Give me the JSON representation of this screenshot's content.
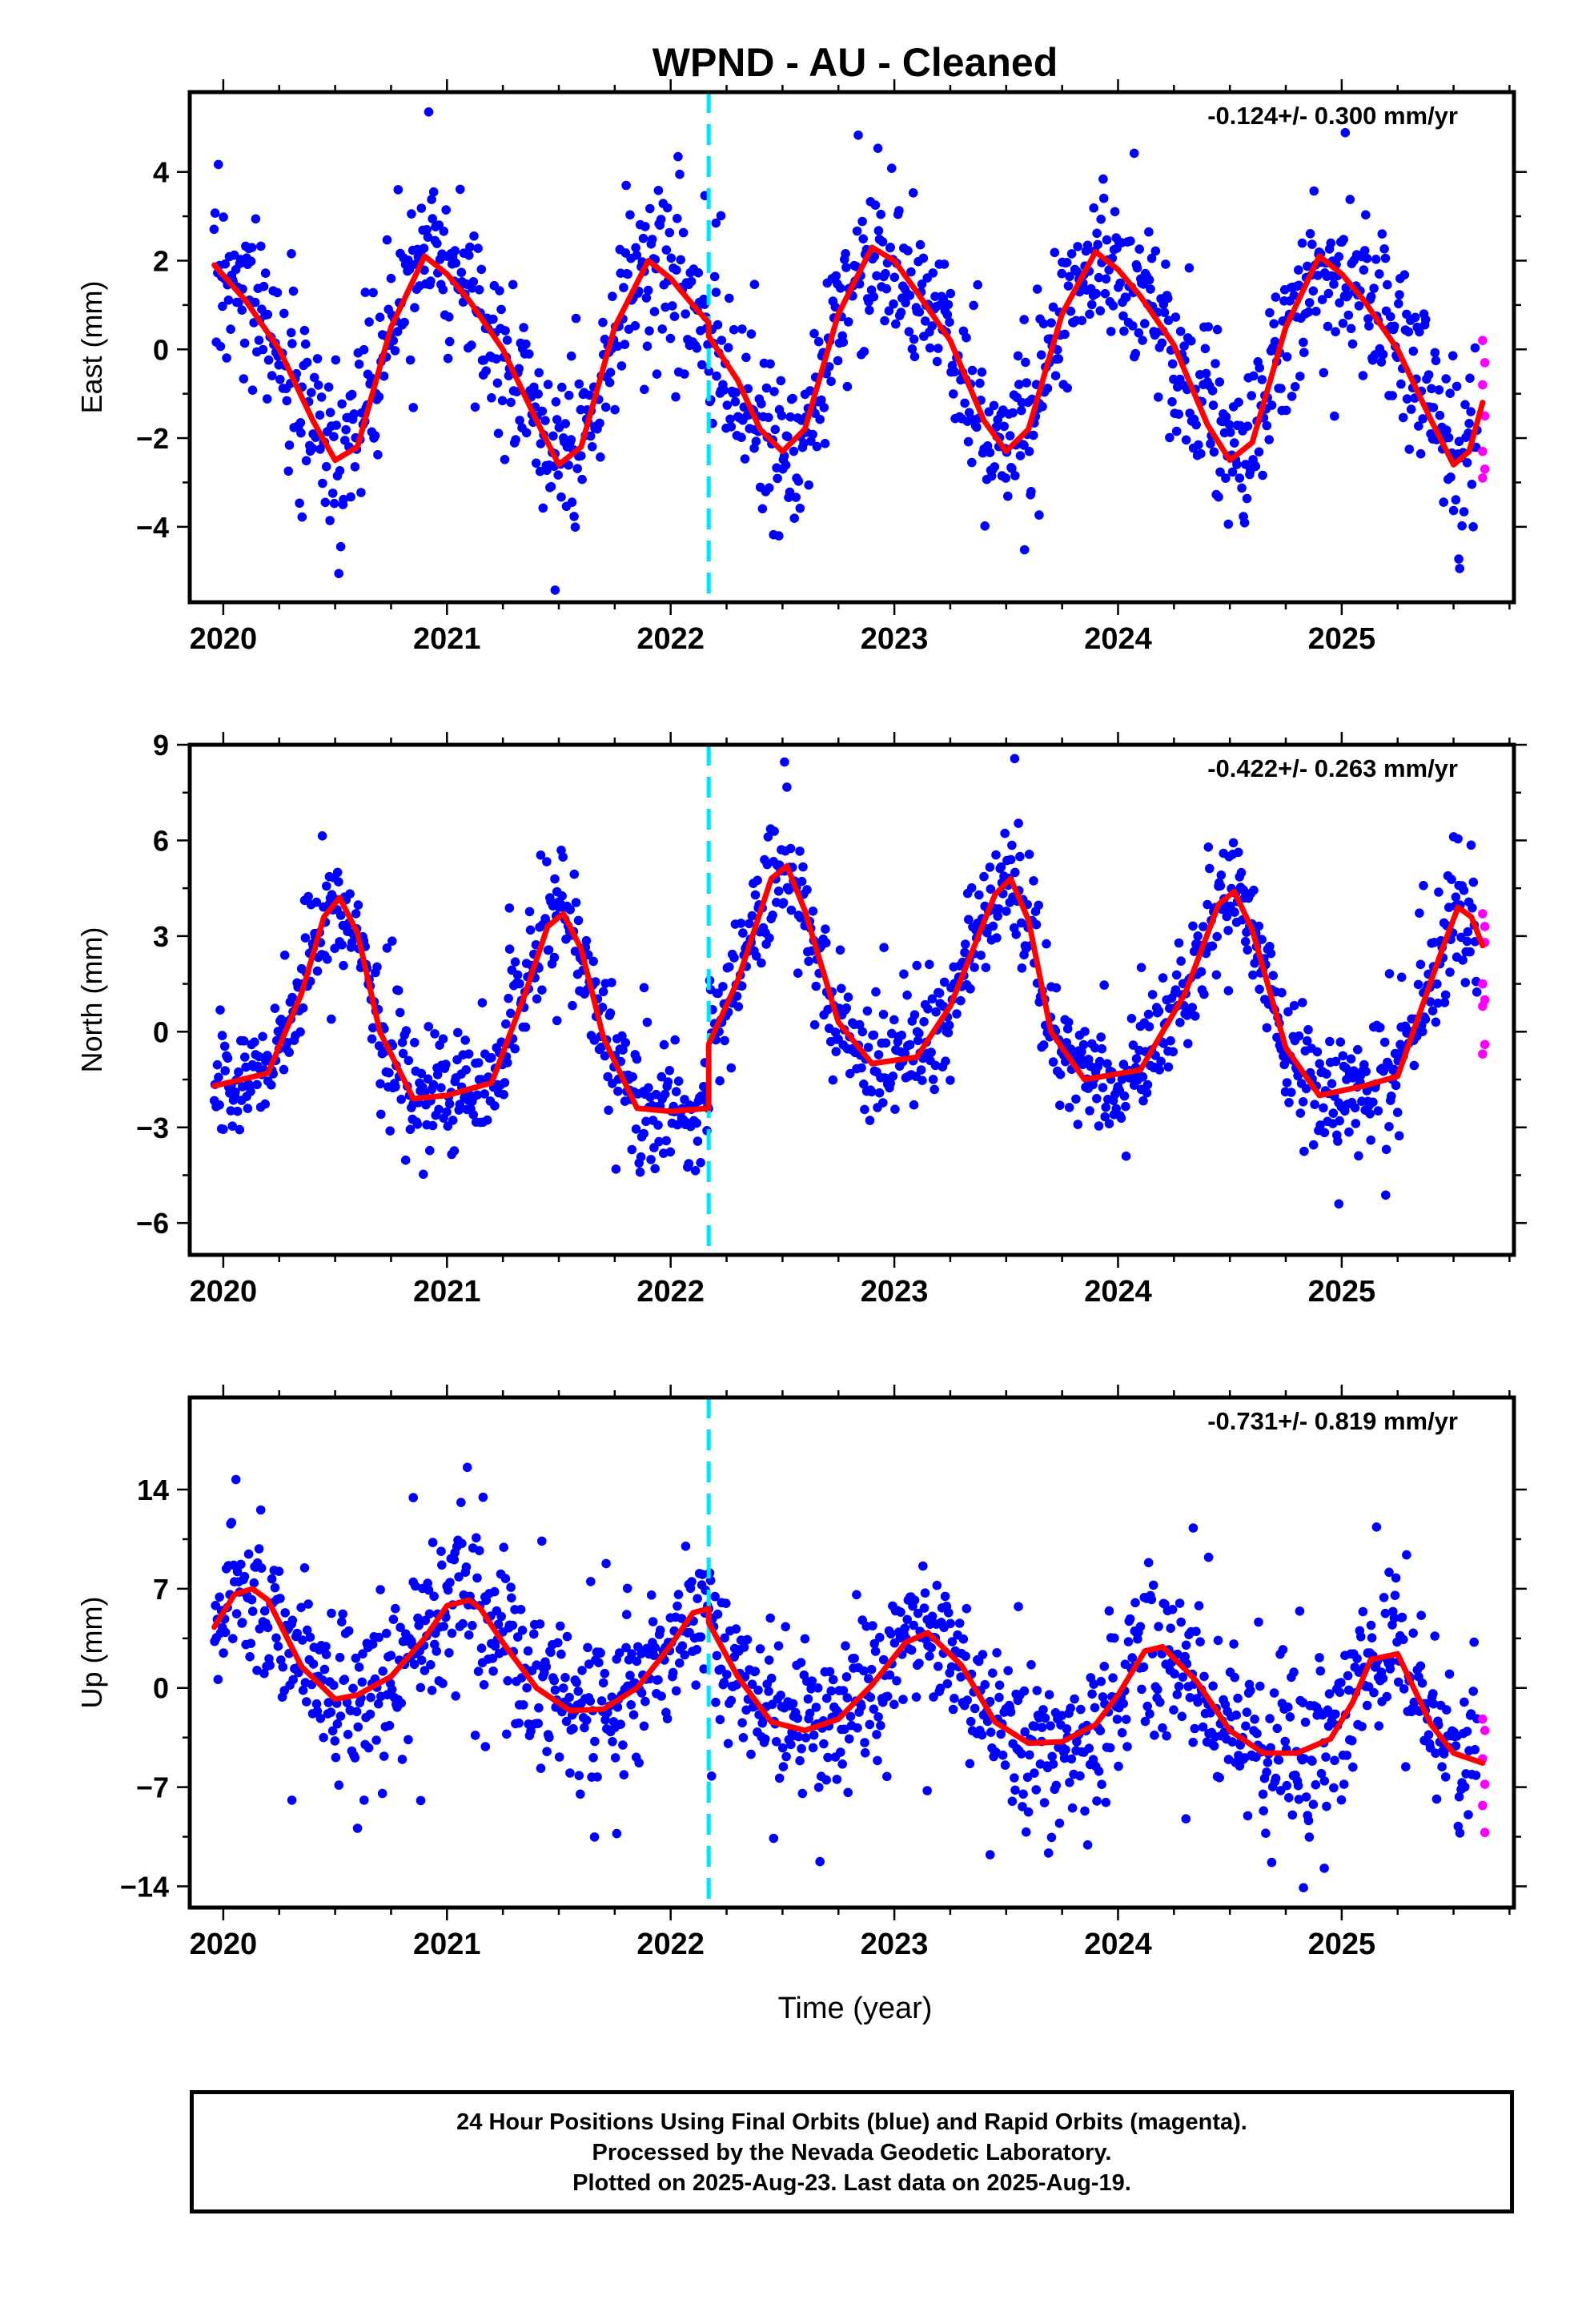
{
  "title": "WPND  - AU - Cleaned",
  "xlabel": "Time (year)",
  "x_ticks": [
    "2020",
    "2021",
    "2022",
    "2023",
    "2024",
    "2025"
  ],
  "colors": {
    "final_orbits": "#0000ff",
    "rapid_orbits": "#ff00ff",
    "model": "#ff0000",
    "equipment_change": "#00e5ff"
  },
  "footer": {
    "line1": "24 Hour Positions Using Final Orbits (blue) and Rapid Orbits (magenta).",
    "line2": "Processed by the Nevada Geodetic Laboratory.",
    "line3": "Plotted on 2025-Aug-23. Last data on 2025-Aug-19."
  },
  "chart_data": [
    {
      "type": "scatter",
      "component": "East",
      "ylabel": "East (mm)",
      "rate_label": "-0.124+/- 0.300 mm/yr",
      "xlim": [
        2019.85,
        2025.77
      ],
      "ylim": [
        -5.7,
        5.8
      ],
      "y_ticks": [
        4,
        2,
        0,
        -2,
        -4
      ],
      "y_tick_labels": [
        "4",
        "2",
        "0",
        "−2",
        "−4"
      ],
      "equipment_change_x": 2022.17,
      "model": {
        "x": [
          2019.96,
          2020.1,
          2020.25,
          2020.4,
          2020.5,
          2020.6,
          2020.75,
          2020.9,
          2021.0,
          2021.1,
          2021.25,
          2021.4,
          2021.5,
          2021.6,
          2021.75,
          2021.9,
          2022.0,
          2022.1,
          2022.17,
          2022.17,
          2022.3,
          2022.4,
          2022.5,
          2022.6,
          2022.75,
          2022.9,
          2023.0,
          2023.1,
          2023.25,
          2023.4,
          2023.5,
          2023.6,
          2023.75,
          2023.9,
          2024.0,
          2024.1,
          2024.25,
          2024.4,
          2024.5,
          2024.6,
          2024.75,
          2024.9,
          2025.0,
          2025.1,
          2025.25,
          2025.4,
          2025.5,
          2025.57,
          2025.63
        ],
        "y": [
          1.9,
          1.1,
          0.0,
          -1.6,
          -2.5,
          -2.2,
          0.5,
          2.1,
          1.7,
          1.1,
          0.0,
          -1.6,
          -2.6,
          -2.2,
          0.5,
          2.0,
          1.6,
          1.0,
          0.6,
          0.3,
          -0.7,
          -1.8,
          -2.3,
          -1.8,
          0.8,
          2.3,
          2.0,
          1.3,
          0.2,
          -1.6,
          -2.3,
          -1.8,
          0.8,
          2.2,
          1.8,
          1.2,
          0.1,
          -1.7,
          -2.5,
          -2.1,
          0.5,
          2.1,
          1.7,
          1.1,
          0.0,
          -1.6,
          -2.6,
          -2.3,
          -1.2
        ]
      },
      "points_generation": {
        "count": 1250,
        "scatter_sd": 0.95,
        "outliers": 18,
        "outlier_range": 1.8
      },
      "rapid_points": {
        "x": [
          2025.63,
          2025.64,
          2025.63,
          2025.64,
          2025.63,
          2025.64,
          2025.63
        ],
        "y": [
          0.2,
          -0.3,
          -0.8,
          -1.5,
          -2.3,
          -2.7,
          -2.9
        ]
      }
    },
    {
      "type": "scatter",
      "component": "North",
      "ylabel": "North (mm)",
      "rate_label": "-0.422+/- 0.263 mm/yr",
      "xlim": [
        2019.85,
        2025.77
      ],
      "ylim": [
        -7,
        9
      ],
      "y_ticks": [
        9,
        6,
        3,
        0,
        -3,
        -6
      ],
      "y_tick_labels": [
        "9",
        "6",
        "3",
        "0",
        "−3",
        "−6"
      ],
      "equipment_change_x": 2022.17,
      "model": {
        "x": [
          2019.96,
          2020.2,
          2020.35,
          2020.45,
          2020.52,
          2020.6,
          2020.7,
          2020.85,
          2021.0,
          2021.2,
          2021.35,
          2021.45,
          2021.52,
          2021.6,
          2021.7,
          2021.85,
          2022.0,
          2022.17,
          2022.17,
          2022.3,
          2022.45,
          2022.52,
          2022.6,
          2022.75,
          2022.9,
          2023.1,
          2023.25,
          2023.45,
          2023.52,
          2023.6,
          2023.7,
          2023.85,
          2024.1,
          2024.3,
          2024.45,
          2024.52,
          2024.6,
          2024.75,
          2024.9,
          2025.1,
          2025.25,
          2025.45,
          2025.52,
          2025.58,
          2025.63
        ],
        "y": [
          -1.7,
          -1.3,
          1.2,
          3.6,
          4.2,
          3.1,
          0.0,
          -2.1,
          -2.0,
          -1.6,
          1.2,
          3.3,
          3.7,
          2.6,
          -0.2,
          -2.4,
          -2.5,
          -2.4,
          -0.4,
          1.6,
          4.8,
          5.2,
          3.8,
          0.3,
          -1.0,
          -0.8,
          0.8,
          4.3,
          4.8,
          3.5,
          0.0,
          -1.5,
          -1.2,
          1.2,
          4.0,
          4.4,
          3.2,
          -0.5,
          -2.0,
          -1.7,
          -1.4,
          2.6,
          3.9,
          3.6,
          2.7
        ]
      },
      "points_generation": {
        "count": 1250,
        "scatter_sd": 0.95,
        "outliers": 18,
        "outlier_range": 2.4
      },
      "rapid_points": {
        "x": [
          2025.63,
          2025.64,
          2025.63,
          2025.64,
          2025.63,
          2025.64,
          2025.63,
          2025.64
        ],
        "y": [
          3.7,
          2.8,
          1.5,
          1.0,
          0.8,
          -0.4,
          -0.7,
          3.3
        ]
      }
    },
    {
      "type": "scatter",
      "component": "Up",
      "ylabel": "Up (mm)",
      "rate_label": "-0.731+/- 0.819 mm/yr",
      "xlim": [
        2019.85,
        2025.77
      ],
      "ylim": [
        -15.5,
        20.5
      ],
      "y_ticks": [
        14,
        7,
        0,
        -7,
        -14
      ],
      "y_tick_labels": [
        "14",
        "7",
        "0",
        "−7",
        "−14"
      ],
      "equipment_change_x": 2022.17,
      "model": {
        "x": [
          2019.96,
          2020.05,
          2020.13,
          2020.2,
          2020.35,
          2020.5,
          2020.6,
          2020.75,
          2020.9,
          2021.0,
          2021.1,
          2021.15,
          2021.25,
          2021.4,
          2021.55,
          2021.7,
          2021.85,
          2022.0,
          2022.1,
          2022.17,
          2022.17,
          2022.3,
          2022.45,
          2022.6,
          2022.75,
          2022.9,
          2023.05,
          2023.15,
          2023.3,
          2023.45,
          2023.6,
          2023.75,
          2023.9,
          2024.0,
          2024.12,
          2024.2,
          2024.35,
          2024.5,
          2024.65,
          2024.8,
          2024.95,
          2025.05,
          2025.13,
          2025.25,
          2025.4,
          2025.5,
          2025.63
        ],
        "y": [
          4.3,
          6.6,
          7.0,
          6.2,
          1.5,
          -0.8,
          -0.5,
          0.8,
          3.5,
          5.8,
          6.2,
          5.6,
          3.2,
          0.0,
          -1.6,
          -1.5,
          0.0,
          3.0,
          5.3,
          5.6,
          4.6,
          0.8,
          -2.4,
          -3.0,
          -2.2,
          0.2,
          3.2,
          3.9,
          1.6,
          -2.4,
          -3.9,
          -3.8,
          -2.6,
          -0.5,
          2.6,
          2.9,
          0.5,
          -3.0,
          -4.6,
          -4.6,
          -3.6,
          -1.0,
          2.0,
          2.4,
          -2.6,
          -4.6,
          -5.3
        ]
      },
      "points_generation": {
        "count": 1250,
        "scatter_sd": 2.8,
        "outliers": 22,
        "outlier_range": 6.5
      },
      "rapid_points": {
        "x": [
          2025.63,
          2025.64,
          2025.63,
          2025.64,
          2025.63,
          2025.64
        ],
        "y": [
          -2.2,
          -3.0,
          -5.0,
          -6.8,
          -8.3,
          -10.2
        ]
      }
    }
  ]
}
